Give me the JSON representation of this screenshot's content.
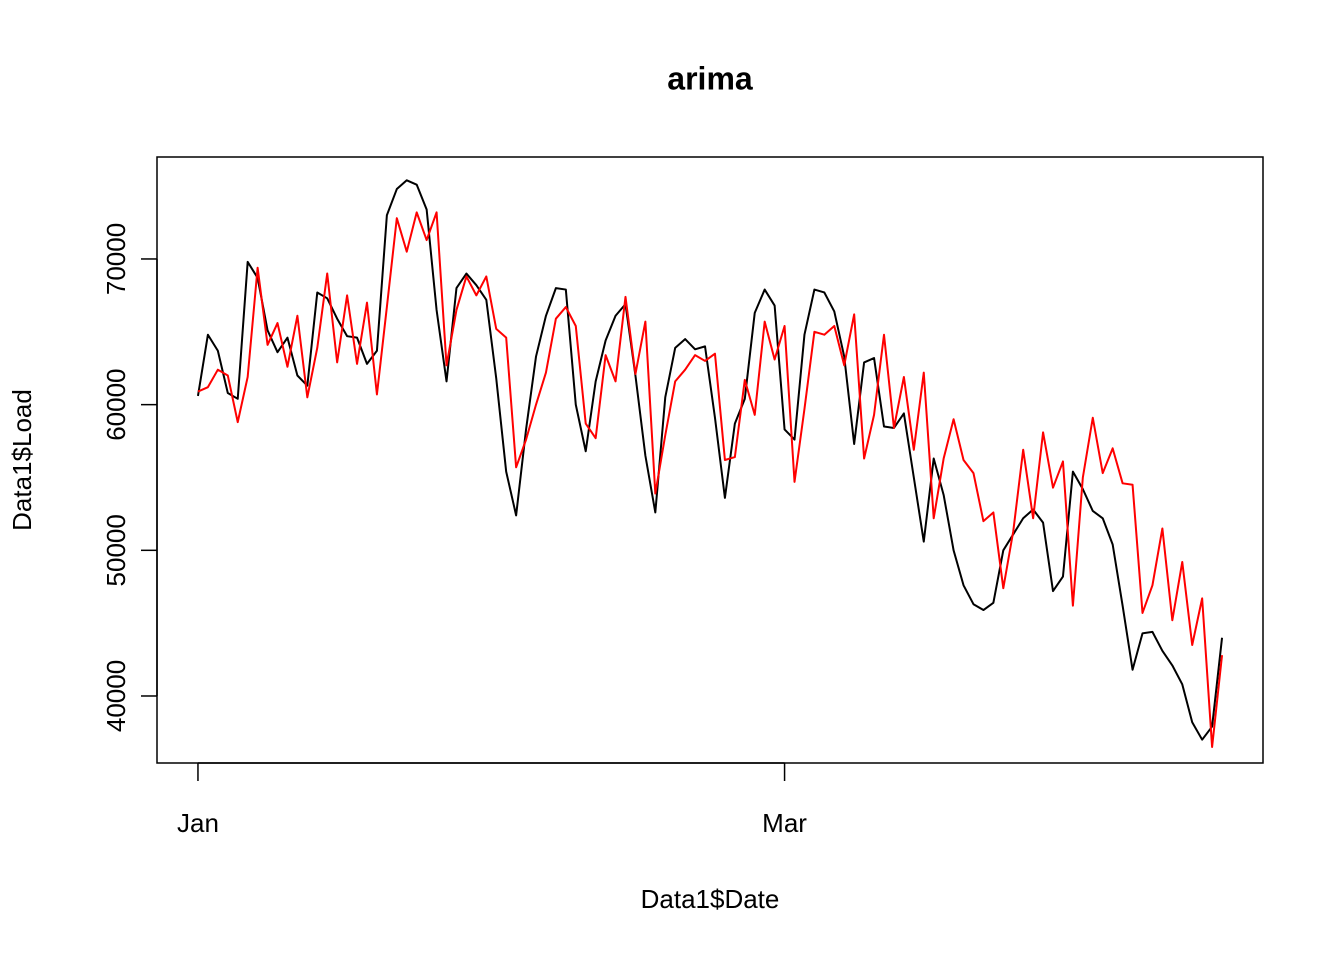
{
  "chart_data": {
    "type": "line",
    "title": "arima",
    "xlabel": "Data1$Date",
    "ylabel": "Data1$Load",
    "x": [
      0,
      1,
      2,
      3,
      4,
      5,
      6,
      7,
      8,
      9,
      10,
      11,
      12,
      13,
      14,
      15,
      16,
      17,
      18,
      19,
      20,
      21,
      22,
      23,
      24,
      25,
      26,
      27,
      28,
      29,
      30,
      31,
      32,
      33,
      34,
      35,
      36,
      37,
      38,
      39,
      40,
      41,
      42,
      43,
      44,
      45,
      46,
      47,
      48,
      49,
      50,
      51,
      52,
      53,
      54,
      55,
      56,
      57,
      58,
      59,
      60,
      61,
      62,
      63,
      64,
      65,
      66,
      67,
      68,
      69,
      70,
      71,
      72,
      73,
      74,
      75,
      76,
      77,
      78,
      79,
      80,
      81,
      82,
      83,
      84,
      85,
      86,
      87,
      88,
      89,
      90,
      91,
      92,
      93,
      94,
      95,
      96,
      97,
      98,
      99,
      100,
      101,
      102,
      103
    ],
    "series": [
      {
        "color": "#000000",
        "values": [
          60600,
          64800,
          63700,
          60800,
          60400,
          69800,
          68700,
          65100,
          63600,
          64600,
          62000,
          61300,
          67700,
          67300,
          65900,
          64700,
          64600,
          62800,
          63700,
          73000,
          74800,
          75400,
          75100,
          73400,
          66500,
          61600,
          68000,
          69000,
          68200,
          67200,
          61800,
          55400,
          52400,
          58300,
          63300,
          66100,
          68000,
          67900,
          60000,
          56800,
          61600,
          64400,
          66100,
          66900,
          62000,
          56500,
          52600,
          60500,
          63900,
          64500,
          63800,
          64000,
          59100,
          53600,
          58700,
          60400,
          66300,
          67900,
          66800,
          58300,
          57600,
          64800,
          67900,
          67700,
          66400,
          63300,
          57300,
          62900,
          63200,
          58500,
          58400,
          59400,
          55000,
          50600,
          56300,
          53800,
          50000,
          47600,
          46300,
          45900,
          46400,
          50000,
          51100,
          52200,
          52800,
          51900,
          47200,
          48200,
          55400,
          54200,
          52700,
          52200,
          50400,
          46200,
          41800,
          44300,
          44400,
          43100,
          42100,
          40800,
          38200,
          37000,
          37900,
          44000
        ]
      },
      {
        "color": "#ff0000",
        "values": [
          60900,
          61200,
          62400,
          62000,
          58800,
          61900,
          69400,
          64100,
          65600,
          62600,
          66100,
          60500,
          63900,
          69000,
          62900,
          67500,
          62800,
          67000,
          60700,
          66700,
          72800,
          70500,
          73200,
          71300,
          73200,
          62700,
          66500,
          68800,
          67500,
          68800,
          65200,
          64600,
          55700,
          57600,
          60000,
          62200,
          65900,
          66700,
          65400,
          58700,
          57700,
          63400,
          61600,
          67400,
          62100,
          65700,
          53900,
          57900,
          61600,
          62400,
          63400,
          63000,
          63500,
          56200,
          56400,
          61700,
          59300,
          65700,
          63100,
          65400,
          54700,
          59700,
          65000,
          64800,
          65400,
          62700,
          66200,
          56300,
          59300,
          64800,
          58400,
          61900,
          56900,
          62200,
          52200,
          56300,
          59000,
          56200,
          55300,
          52000,
          52600,
          47400,
          51300,
          56900,
          52200,
          58100,
          54300,
          56100,
          46200,
          55000,
          59100,
          55300,
          57000,
          54600,
          54500,
          45700,
          47600,
          51500,
          45200,
          49200,
          43500,
          46700,
          36500,
          42800
        ]
      }
    ],
    "xlim": [
      -4.12,
      107.12
    ],
    "xticks": [
      {
        "value": 0,
        "label": "Jan"
      },
      {
        "value": 59,
        "label": "Mar"
      }
    ],
    "ylim": [
      35400,
      77000
    ],
    "yticks": [
      40000,
      50000,
      60000,
      70000
    ]
  }
}
